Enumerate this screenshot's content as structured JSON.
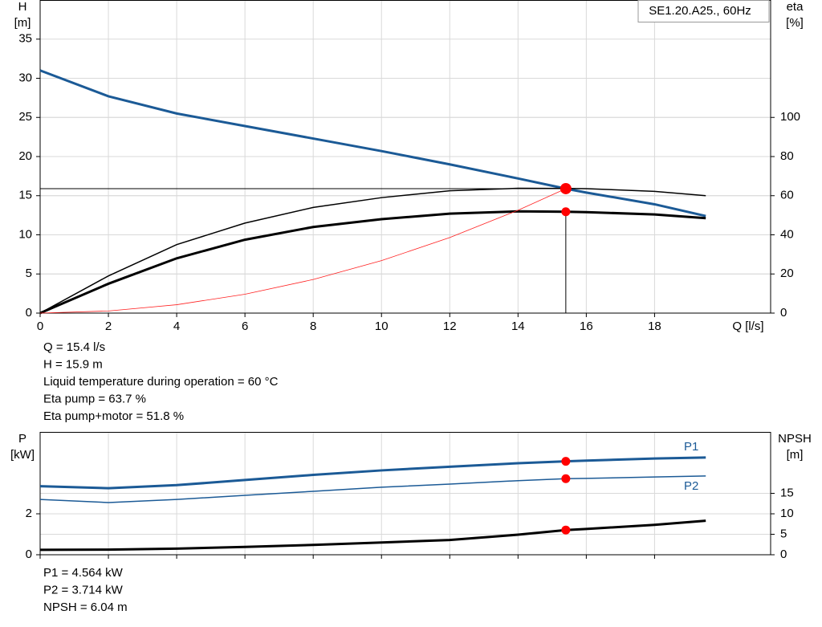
{
  "chart_data": [
    {
      "type": "line",
      "title": "SE1.20.A25., 60Hz",
      "xlabel": "Q [l/s]",
      "ylabel": [
        "H",
        "[m]"
      ],
      "y2label": [
        "eta",
        "[%]"
      ],
      "x": [
        0,
        2,
        4,
        6,
        8,
        10,
        12,
        14,
        15.4,
        16,
        18,
        19.5
      ],
      "series": [
        {
          "color": "#1b5a96",
          "width": 3,
          "values": [
            31,
            27.7,
            25.5,
            23.9,
            22.3,
            20.7,
            19,
            17.2,
            15.9,
            15.4,
            13.9,
            12.4
          ]
        },
        {
          "color": "#000000",
          "width": 1.5,
          "axis": "y2",
          "values": [
            0,
            19,
            35,
            46,
            54,
            59,
            62.5,
            63.8,
            63.7,
            63.6,
            62.2,
            60
          ]
        },
        {
          "color": "#000000",
          "width": 3,
          "axis": "y2",
          "values": [
            0,
            15,
            28,
            37.5,
            44,
            48,
            50.8,
            52,
            51.8,
            51.6,
            50.4,
            48.5
          ]
        },
        {
          "color": "#ff2020",
          "width": 0.8,
          "values": [
            0,
            0.27,
            1.07,
            2.41,
            4.29,
            6.7,
            9.65,
            13.14,
            15.9,
            null,
            null,
            null
          ]
        }
      ],
      "points": [
        {
          "x": 15.4,
          "y": 15.9,
          "size": 7
        },
        {
          "x": 15.4,
          "y": 51.8,
          "axis": "y2",
          "size": 5.5
        }
      ],
      "xlim": [
        0,
        21.4
      ],
      "xticks": [
        0,
        2,
        4,
        6,
        8,
        10,
        12,
        14,
        16,
        18
      ],
      "ylim": [
        0,
        40
      ],
      "yticks": [
        0,
        5,
        10,
        15,
        20,
        25,
        30,
        35
      ],
      "y2lim": [
        0,
        160
      ],
      "y2ticks": [
        0,
        20,
        40,
        60,
        80,
        100
      ],
      "grid": true,
      "notes": [
        "Q = 15.4 l/s",
        "H = 15.9 m",
        "Liquid temperature during operation = 60 °C",
        "Eta pump = 63.7 %",
        "Eta pump+motor = 51.8 %"
      ]
    },
    {
      "type": "line",
      "ylabel": [
        "P",
        "[kW]"
      ],
      "y2label": [
        "NPSH",
        "[m]"
      ],
      "x": [
        0,
        2,
        4,
        6,
        8,
        10,
        12,
        14,
        15.4,
        16,
        18,
        19.5
      ],
      "series": [
        {
          "name": "P1",
          "color": "#1b5a96",
          "width": 3,
          "values": [
            3.35,
            3.25,
            3.4,
            3.65,
            3.9,
            4.12,
            4.3,
            4.47,
            4.564,
            4.6,
            4.7,
            4.75
          ]
        },
        {
          "name": "P2",
          "color": "#1b5a96",
          "width": 1.5,
          "values": [
            2.7,
            2.55,
            2.7,
            2.9,
            3.1,
            3.3,
            3.45,
            3.62,
            3.714,
            3.73,
            3.8,
            3.85
          ]
        },
        {
          "color": "#000000",
          "width": 3,
          "axis": "y2",
          "values": [
            1.2,
            1.25,
            1.5,
            1.9,
            2.4,
            3,
            3.6,
            4.9,
            6.04,
            6.3,
            7.3,
            8.3
          ]
        }
      ],
      "points": [
        {
          "x": 15.4,
          "y": 4.564,
          "size": 5.5
        },
        {
          "x": 15.4,
          "y": 3.714,
          "size": 5.5
        },
        {
          "x": 15.4,
          "y": 6.04,
          "axis": "y2",
          "size": 5.5
        }
      ],
      "xlim": [
        0,
        21.4
      ],
      "ylim": [
        0,
        6
      ],
      "yticks": [
        0,
        2
      ],
      "y2lim": [
        0,
        30
      ],
      "y2ticks": [
        0,
        5,
        10,
        15
      ],
      "grid": true,
      "notes": [
        "P1 = 4.564 kW",
        "P2 = 3.714 kW",
        "NPSH = 6.04 m"
      ]
    }
  ]
}
